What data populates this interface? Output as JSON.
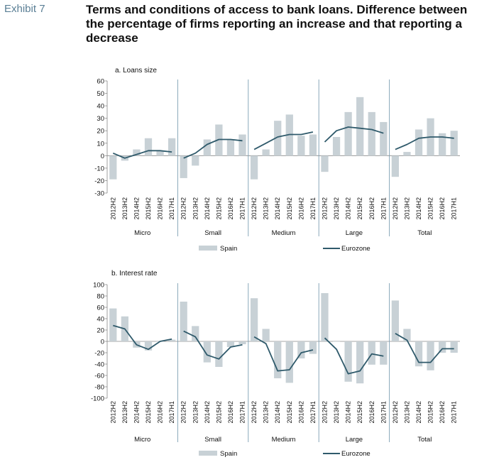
{
  "header": {
    "exhibit_label": "Exhibit 7",
    "title": "Terms and conditions of access to bank loans. Difference between the percentage of firms reporting an increase and that reporting a decrease"
  },
  "colors": {
    "spain": "#c8d1d6",
    "eurozone": "#2f5a6b",
    "divider": "#7d9fb2",
    "axis": "#888888"
  },
  "chart_data": [
    {
      "type": "bar",
      "title": "a. Loans size",
      "ylim": [
        -30,
        60
      ],
      "yticks": [
        60,
        50,
        40,
        30,
        20,
        10,
        0,
        -10,
        -20,
        -30
      ],
      "periods": [
        "2012H2",
        "2013H2",
        "2014H2",
        "2015H2",
        "2016H2",
        "2017H1"
      ],
      "groups": [
        "Micro",
        "Small",
        "Medium",
        "Large",
        "Total"
      ],
      "legend": [
        "Spain",
        "Eurozone"
      ],
      "series": [
        {
          "name": "Spain",
          "kind": "bar",
          "values": [
            [
              -19,
              -4,
              5,
              14,
              4,
              14
            ],
            [
              -18,
              -8,
              13,
              25,
              13,
              17
            ],
            [
              -19,
              5,
              28,
              33,
              16,
              17
            ],
            [
              -13,
              15,
              35,
              47,
              35,
              27
            ],
            [
              -17,
              3,
              21,
              30,
              18,
              20
            ]
          ]
        },
        {
          "name": "Eurozone",
          "kind": "line",
          "values": [
            [
              2,
              -2,
              1,
              4,
              4,
              3
            ],
            [
              -2,
              2,
              9,
              13,
              13,
              12
            ],
            [
              5,
              10,
              15,
              17,
              17,
              19
            ],
            [
              11,
              20,
              23,
              22,
              21,
              18
            ],
            [
              5,
              9,
              14,
              15,
              15,
              14
            ]
          ]
        }
      ]
    },
    {
      "type": "bar",
      "title": "b. Interest rate",
      "ylim": [
        -100,
        100
      ],
      "yticks": [
        100,
        80,
        60,
        40,
        20,
        0,
        -20,
        -40,
        -60,
        -80,
        -100
      ],
      "periods": [
        "2012H2",
        "2013H2",
        "2014H2",
        "2015H2",
        "2016H2",
        "2017H1"
      ],
      "groups": [
        "Micro",
        "Small",
        "Medium",
        "Large",
        "Total"
      ],
      "legend": [
        "Spain",
        "Eurozone"
      ],
      "series": [
        {
          "name": "Spain",
          "kind": "bar",
          "values": [
            [
              58,
              44,
              -11,
              -16,
              0,
              3
            ],
            [
              70,
              27,
              -37,
              -45,
              -10,
              -5
            ],
            [
              76,
              22,
              -65,
              -73,
              -30,
              -22
            ],
            [
              85,
              0,
              -71,
              -74,
              -41,
              -41
            ],
            [
              72,
              22,
              -44,
              -51,
              -20,
              -20
            ]
          ]
        },
        {
          "name": "Eurozone",
          "kind": "line",
          "values": [
            [
              28,
              22,
              -6,
              -14,
              0,
              4
            ],
            [
              18,
              8,
              -24,
              -31,
              -10,
              -6
            ],
            [
              8,
              -4,
              -52,
              -50,
              -20,
              -15
            ],
            [
              6,
              -14,
              -57,
              -52,
              -22,
              -26
            ],
            [
              14,
              2,
              -37,
              -37,
              -13,
              -13
            ]
          ]
        }
      ]
    }
  ]
}
